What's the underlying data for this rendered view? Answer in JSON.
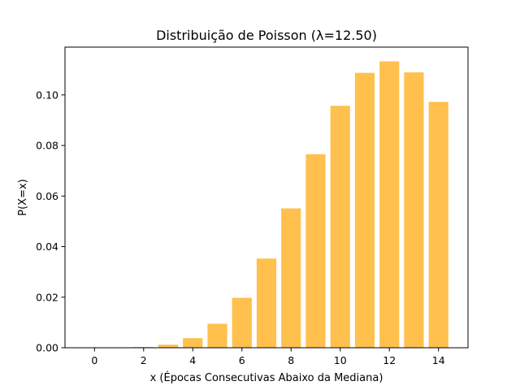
{
  "chart_data": {
    "type": "bar",
    "title": "Distribuição de Poisson (λ=12.50)",
    "xlabel": "x (Épocas Consecutivas Abaixo da Mediana)",
    "ylabel": "P(X=x)",
    "categories": [
      0,
      1,
      2,
      3,
      4,
      5,
      6,
      7,
      8,
      9,
      10,
      11,
      12,
      13,
      14
    ],
    "values": [
      3.7e-06,
      4.66e-05,
      0.000291,
      0.00121,
      0.00379,
      0.00948,
      0.01975,
      0.03527,
      0.05511,
      0.07654,
      0.09568,
      0.10873,
      0.11326,
      0.10891,
      0.09724
    ],
    "xlim": [
      -1.2,
      15.2
    ],
    "ylim": [
      0,
      0.1189
    ],
    "xticks": [
      0,
      2,
      4,
      6,
      8,
      10,
      12,
      14
    ],
    "yticks": [
      0.0,
      0.02,
      0.04,
      0.06,
      0.08,
      0.1
    ],
    "ytick_labels": [
      "0.00",
      "0.02",
      "0.04",
      "0.06",
      "0.08",
      "0.10"
    ],
    "bar_color": "#ffc04d",
    "grid": false,
    "legend": "none"
  }
}
